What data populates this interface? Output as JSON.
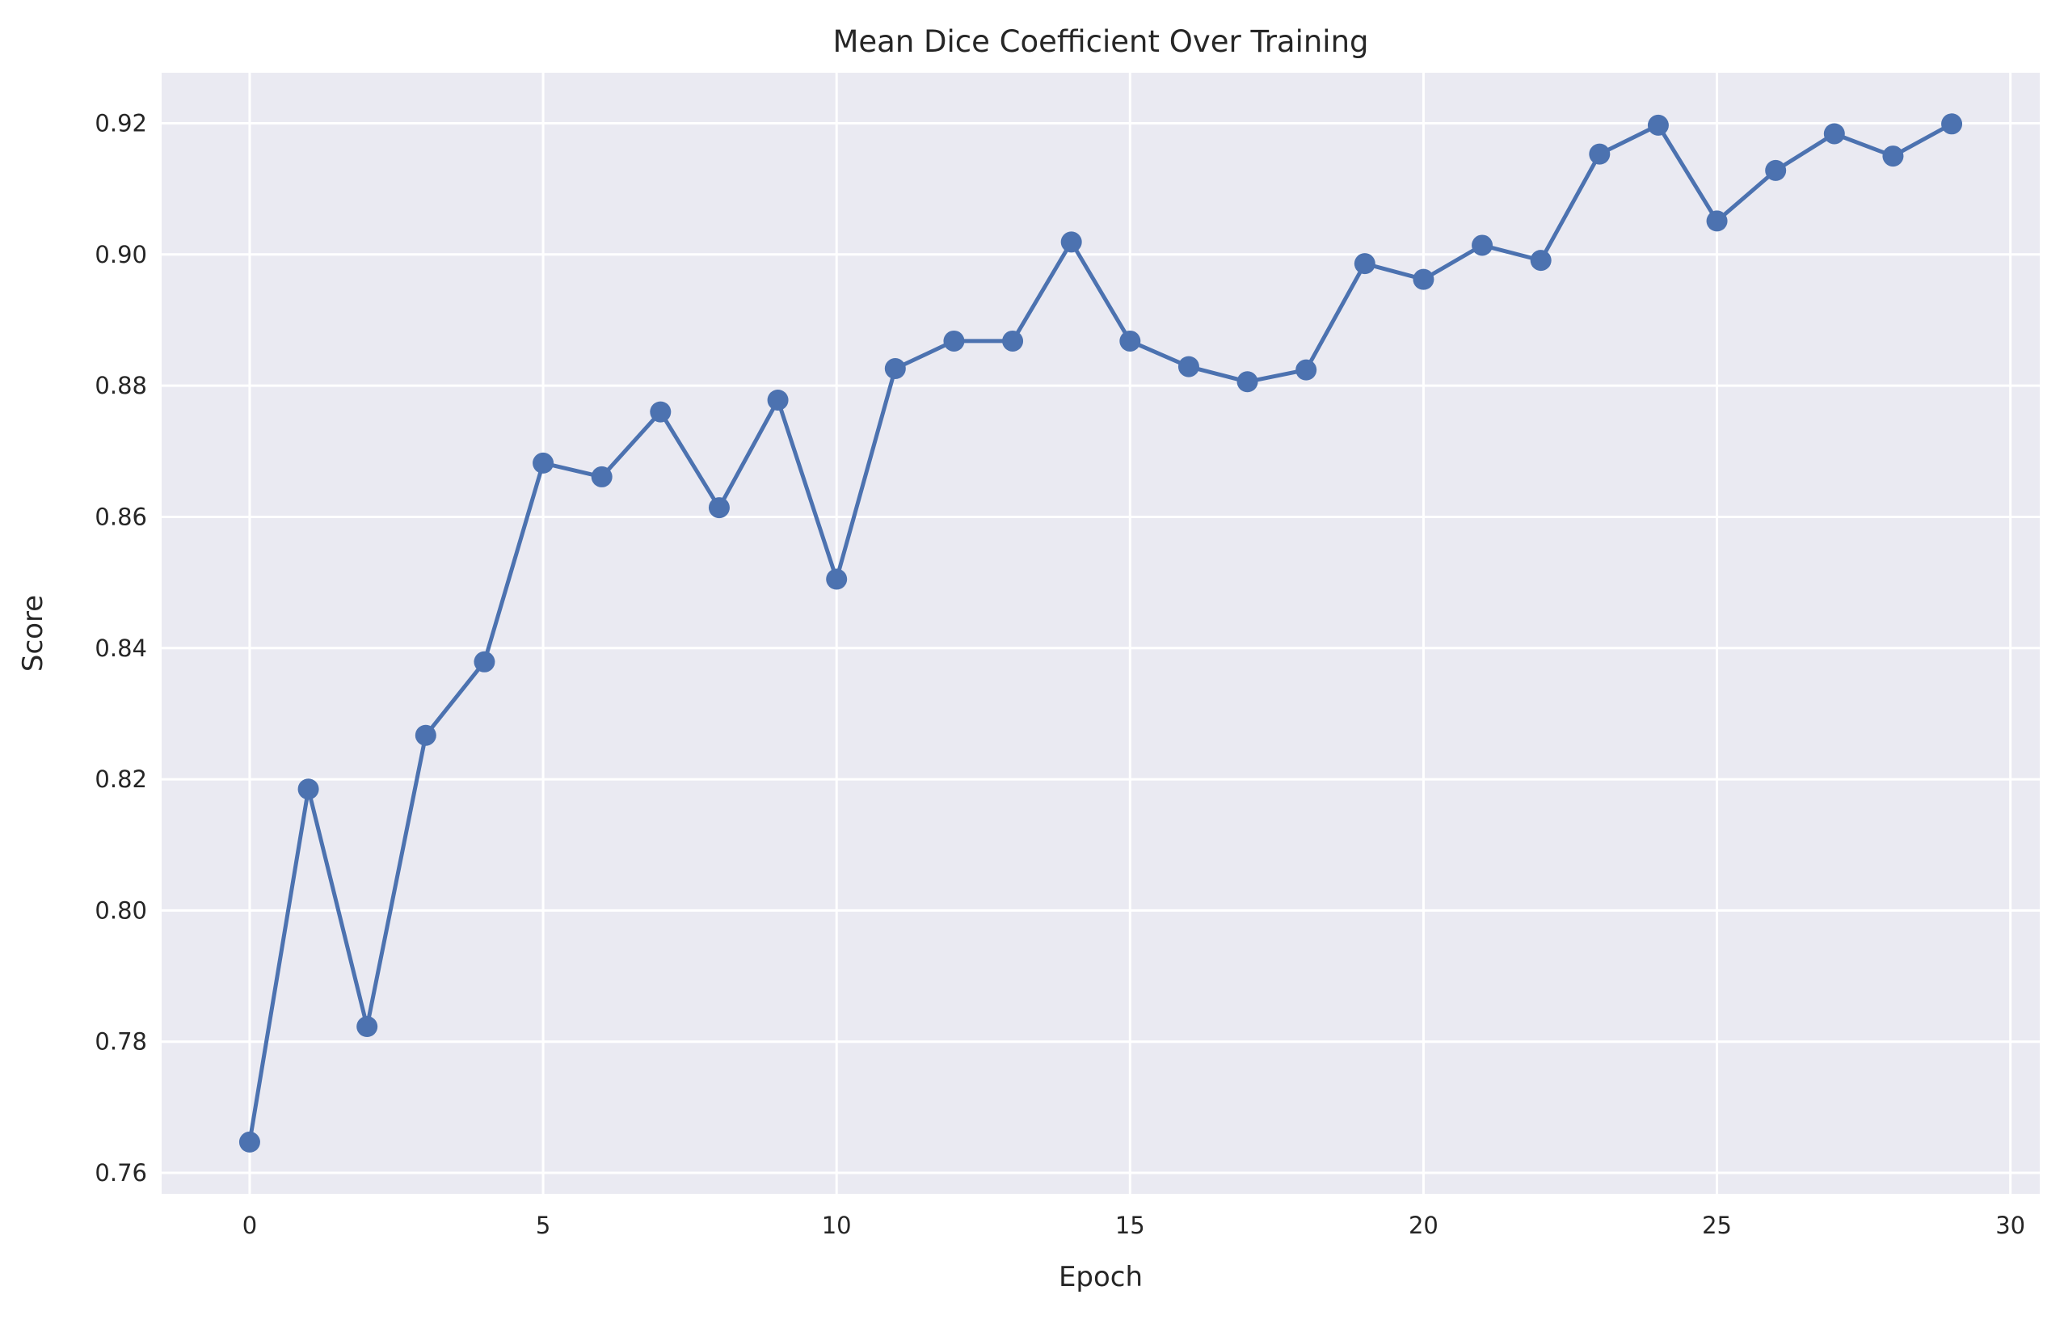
{
  "chart_data": {
    "type": "line",
    "title": "Mean Dice Coefficient Over Training",
    "xlabel": "Epoch",
    "ylabel": "Score",
    "xlim": [
      -1.5,
      30.5
    ],
    "ylim": [
      0.7568,
      0.9277
    ],
    "xticks": [
      0,
      5,
      10,
      15,
      20,
      25,
      30
    ],
    "yticks": [
      0.76,
      0.78,
      0.8,
      0.82,
      0.84,
      0.86,
      0.88,
      0.9,
      0.92
    ],
    "xtick_labels": [
      "0",
      "5",
      "10",
      "15",
      "20",
      "25",
      "30"
    ],
    "ytick_labels": [
      "0.76",
      "0.78",
      "0.80",
      "0.82",
      "0.84",
      "0.86",
      "0.88",
      "0.90",
      "0.92"
    ],
    "grid": true,
    "legend": "none",
    "colors": {
      "series": "#4c72b0",
      "background": "#eaeaf2",
      "grid": "#ffffff"
    },
    "series": [
      {
        "x": [
          0,
          1,
          2,
          3,
          4,
          5,
          6,
          7,
          8,
          9,
          10,
          11,
          12,
          13,
          14,
          15,
          16,
          17,
          18,
          19,
          20,
          21,
          22,
          23,
          24,
          25,
          26,
          27,
          28,
          29
        ],
        "values": [
          0.7647,
          0.8185,
          0.7823,
          0.8267,
          0.8379,
          0.8682,
          0.8661,
          0.876,
          0.8614,
          0.8778,
          0.8505,
          0.8826,
          0.8868,
          0.8868,
          0.9019,
          0.8868,
          0.8829,
          0.8806,
          0.8824,
          0.8986,
          0.8962,
          0.9014,
          0.8991,
          0.9153,
          0.9197,
          0.9051,
          0.9128,
          0.9184,
          0.915,
          0.9199
        ]
      }
    ]
  }
}
